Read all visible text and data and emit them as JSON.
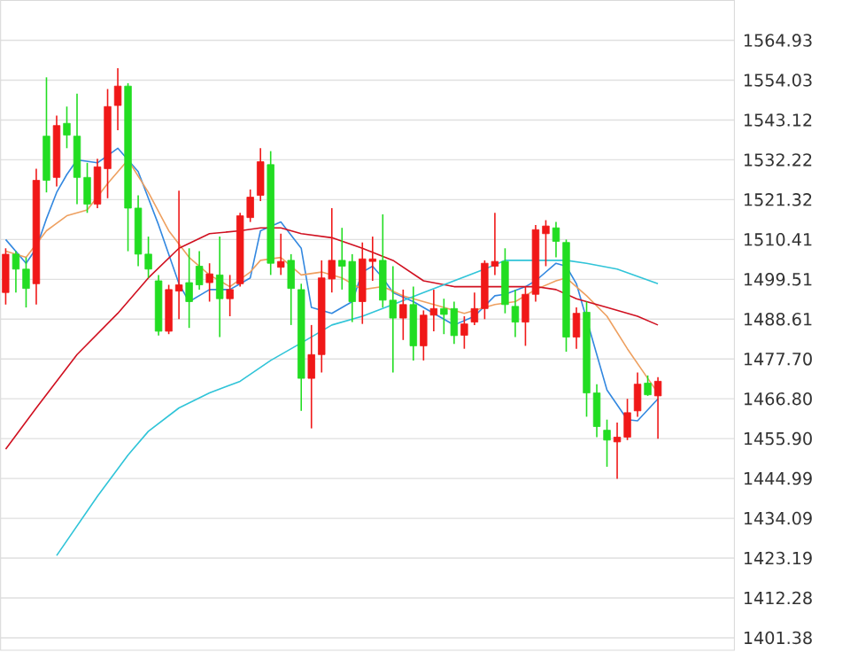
{
  "chart_data": {
    "type": "candlestick",
    "categories": [
      null,
      null,
      null,
      null,
      null,
      null,
      null,
      null,
      null,
      null,
      null,
      null,
      null,
      null,
      null,
      null,
      null,
      null,
      null,
      null,
      null,
      null,
      null,
      null,
      null,
      null,
      null,
      null,
      null,
      null,
      null,
      null,
      null,
      null,
      null,
      null,
      null,
      null,
      null,
      null,
      null,
      null,
      null,
      null,
      null,
      null,
      null,
      null,
      null,
      null,
      null,
      null,
      null,
      null,
      null,
      null,
      null,
      null,
      null,
      null,
      null,
      null,
      null,
      null,
      null
    ],
    "ohlc": [
      [
        1495.9,
        1508.0,
        1492.6,
        1506.4
      ],
      [
        1506.4,
        1507.2,
        1495.9,
        1502.3
      ],
      [
        1502.3,
        1505.5,
        1491.8,
        1497.0
      ],
      [
        1498.3,
        1529.8,
        1492.6,
        1526.6
      ],
      [
        1538.7,
        1554.8,
        1523.3,
        1526.6
      ],
      [
        1527.4,
        1544.3,
        1524.9,
        1541.6
      ],
      [
        1542.2,
        1546.8,
        1535.4,
        1539.0
      ],
      [
        1538.7,
        1550.3,
        1520.1,
        1527.4
      ],
      [
        1527.4,
        1531.4,
        1517.7,
        1520.1
      ],
      [
        1520.1,
        1532.5,
        1519.0,
        1530.3
      ],
      [
        1529.8,
        1551.6,
        1521.7,
        1546.8
      ],
      [
        1547.1,
        1557.3,
        1540.3,
        1552.4
      ],
      [
        1552.4,
        1553.2,
        1507.2,
        1519.0
      ],
      [
        1519.0,
        1522.5,
        1503.1,
        1506.4
      ],
      [
        1506.4,
        1511.2,
        1499.9,
        1502.3
      ],
      [
        1499.1,
        1500.7,
        1484.1,
        1485.3
      ],
      [
        1485.3,
        1498.0,
        1484.5,
        1496.7
      ],
      [
        1496.3,
        1523.8,
        1488.6,
        1498.0
      ],
      [
        1498.6,
        1508.0,
        1486.2,
        1493.4
      ],
      [
        1503.1,
        1507.2,
        1496.7,
        1498.0
      ],
      [
        1498.6,
        1503.9,
        1493.4,
        1501.0
      ],
      [
        1500.7,
        1511.2,
        1483.7,
        1494.2
      ],
      [
        1494.2,
        1500.7,
        1489.4,
        1496.7
      ],
      [
        1498.3,
        1517.7,
        1497.5,
        1516.9
      ],
      [
        1516.4,
        1524.1,
        1515.2,
        1522.0
      ],
      [
        1522.5,
        1535.4,
        1520.9,
        1531.7
      ],
      [
        1530.9,
        1534.6,
        1500.7,
        1503.9
      ],
      [
        1502.8,
        1512.0,
        1500.7,
        1504.4
      ],
      [
        1504.7,
        1506.4,
        1487.0,
        1497.0
      ],
      [
        1496.7,
        1498.3,
        1463.5,
        1472.4
      ],
      [
        1472.4,
        1487.0,
        1458.7,
        1478.9
      ],
      [
        1478.9,
        1504.7,
        1474.0,
        1499.9
      ],
      [
        1499.6,
        1519.0,
        1495.9,
        1504.7
      ],
      [
        1504.7,
        1513.6,
        1496.7,
        1503.1
      ],
      [
        1504.4,
        1506.4,
        1487.8,
        1493.4
      ],
      [
        1493.4,
        1509.6,
        1487.3,
        1505.1
      ],
      [
        1504.4,
        1511.2,
        1499.1,
        1505.1
      ],
      [
        1504.7,
        1517.3,
        1491.8,
        1493.8
      ],
      [
        1493.8,
        1503.1,
        1474.0,
        1488.9
      ],
      [
        1488.9,
        1496.7,
        1482.9,
        1492.6
      ],
      [
        1492.6,
        1497.5,
        1477.3,
        1481.3
      ],
      [
        1481.3,
        1491.0,
        1477.3,
        1489.7
      ],
      [
        1489.7,
        1496.7,
        1485.3,
        1491.5
      ],
      [
        1491.5,
        1494.2,
        1484.5,
        1489.9
      ],
      [
        1491.5,
        1493.4,
        1481.8,
        1484.1
      ],
      [
        1484.2,
        1489.4,
        1480.5,
        1487.3
      ],
      [
        1487.8,
        1495.9,
        1487.0,
        1491.5
      ],
      [
        1491.5,
        1504.7,
        1488.6,
        1503.9
      ],
      [
        1503.1,
        1517.7,
        1500.7,
        1504.4
      ],
      [
        1504.4,
        1508.0,
        1490.2,
        1492.6
      ],
      [
        1492.1,
        1496.7,
        1483.7,
        1487.8
      ],
      [
        1487.8,
        1497.5,
        1481.3,
        1495.4
      ],
      [
        1495.4,
        1514.4,
        1493.4,
        1513.1
      ],
      [
        1512.0,
        1515.7,
        1503.1,
        1514.1
      ],
      [
        1513.6,
        1515.2,
        1505.5,
        1509.9
      ],
      [
        1509.6,
        1510.4,
        1479.7,
        1483.7
      ],
      [
        1483.7,
        1491.8,
        1480.5,
        1490.2
      ],
      [
        1490.5,
        1493.4,
        1461.9,
        1468.4
      ],
      [
        1468.4,
        1470.8,
        1456.3,
        1459.2
      ],
      [
        1458.2,
        1461.1,
        1448.2,
        1455.5
      ],
      [
        1455.0,
        1460.3,
        1444.9,
        1456.3
      ],
      [
        1456.3,
        1466.8,
        1455.5,
        1463.0
      ],
      [
        1463.5,
        1474.0,
        1461.9,
        1470.8
      ],
      [
        1471.1,
        1473.2,
        1467.6,
        1467.9
      ],
      [
        1467.6,
        1472.7,
        1455.9,
        1471.6
      ]
    ],
    "colors": [
      "#f01818",
      "#22dd22",
      "#22dd22",
      "#f01818",
      "#22dd22",
      "#f01818",
      "#22dd22",
      "#22dd22",
      "#22dd22",
      "#f01818",
      "#f01818",
      "#f01818",
      "#22dd22",
      "#22dd22",
      "#22dd22",
      "#22dd22",
      "#f01818",
      "#f01818",
      "#22dd22",
      "#22dd22",
      "#f01818",
      "#22dd22",
      "#f01818",
      "#f01818",
      "#f01818",
      "#f01818",
      "#22dd22",
      "#f01818",
      "#22dd22",
      "#22dd22",
      "#f01818",
      "#f01818",
      "#f01818",
      "#22dd22",
      "#22dd22",
      "#f01818",
      "#f01818",
      "#22dd22",
      "#22dd22",
      "#f01818",
      "#22dd22",
      "#f01818",
      "#f01818",
      "#22dd22",
      "#22dd22",
      "#f01818",
      "#f01818",
      "#f01818",
      "#f01818",
      "#22dd22",
      "#22dd22",
      "#f01818",
      "#f01818",
      "#f01818",
      "#22dd22",
      "#22dd22",
      "#f01818",
      "#22dd22",
      "#22dd22",
      "#22dd22",
      "#f01818",
      "#f01818",
      "#f01818",
      "#22dd22",
      "#f01818"
    ],
    "series": [
      {
        "type": "line",
        "color": "#3388e0",
        "values": [
          1510.4,
          null,
          1503.9,
          1508.0,
          1516.1,
          1523.3,
          1528.2,
          1532.2,
          null,
          1531.4,
          null,
          1535.4,
          null,
          1529.0,
          null,
          1514.4,
          null,
          1498.3,
          1493.4,
          null,
          1496.7,
          null,
          1496.7,
          null,
          1499.9,
          1512.8,
          null,
          1515.2,
          null,
          1508.0,
          1491.8,
          null,
          1490.2,
          null,
          1493.4,
          1501.5,
          1503.1,
          1499.9,
          1495.9,
          null,
          1493.4,
          null,
          1490.2,
          null,
          1487.0,
          null,
          1489.4,
          null,
          1495.0,
          1495.4,
          null,
          1497.5,
          1499.1,
          null,
          1503.9,
          1503.1,
          1498.3,
          null,
          null,
          1469.2,
          null,
          1461.1,
          1460.8,
          null,
          1466.8
        ]
      },
      {
        "type": "line",
        "color": "#eea060",
        "values": [
          1507.2,
          null,
          1505.5,
          null,
          1512.8,
          null,
          1516.9,
          null,
          1518.5,
          null,
          1525.7,
          null,
          1532.2,
          null,
          1523.3,
          null,
          1512.8,
          null,
          1505.5,
          null,
          1500.7,
          null,
          1497.5,
          null,
          1501.5,
          1504.7,
          null,
          1505.5,
          null,
          1500.7,
          null,
          1501.5,
          null,
          1499.9,
          null,
          1496.7,
          null,
          1497.5,
          null,
          1495.0,
          null,
          1493.4,
          null,
          1491.8,
          null,
          1490.2,
          null,
          1491.8,
          1492.6,
          null,
          1493.4,
          null,
          1496.7,
          null,
          1499.1,
          1499.9,
          null,
          1495.0,
          null,
          1489.4,
          null,
          1480.5,
          null,
          1472.4,
          1468.4
        ]
      },
      {
        "type": "line",
        "color": "#d01020",
        "values": [
          1453.0,
          null,
          null,
          1464.3,
          null,
          null,
          null,
          1478.9,
          null,
          null,
          null,
          1490.2,
          null,
          null,
          1499.9,
          null,
          null,
          1508.0,
          null,
          null,
          1512.0,
          null,
          null,
          1512.8,
          null,
          1513.6,
          null,
          1513.6,
          null,
          1512.0,
          null,
          null,
          1510.9,
          null,
          null,
          1508.0,
          null,
          null,
          1504.7,
          null,
          null,
          1499.1,
          null,
          null,
          1497.5,
          null,
          null,
          1497.5,
          null,
          1497.5,
          null,
          null,
          1497.5,
          null,
          1496.7,
          null,
          1494.2,
          null,
          null,
          1491.8,
          null,
          null,
          1489.4,
          null,
          1487.0
        ]
      },
      {
        "type": "line",
        "color": "#30c4d8",
        "values": [
          null,
          null,
          null,
          null,
          null,
          1423.9,
          null,
          null,
          null,
          1440.1,
          null,
          null,
          1451.4,
          null,
          1457.9,
          null,
          null,
          1464.3,
          null,
          null,
          1468.4,
          null,
          null,
          1471.6,
          null,
          null,
          1477.3,
          null,
          null,
          1482.1,
          null,
          null,
          1487.0,
          null,
          null,
          1489.4,
          null,
          null,
          1492.6,
          null,
          null,
          1495.9,
          null,
          null,
          1499.1,
          null,
          null,
          1502.3,
          null,
          1504.7,
          null,
          null,
          1504.7,
          null,
          null,
          1504.7,
          null,
          1503.9,
          null,
          null,
          1502.3,
          null,
          null,
          null,
          1498.3
        ]
      }
    ],
    "ylim": [
      1397.97,
      1575.84
    ],
    "yticks": [
      1564.93,
      1554.03,
      1543.12,
      1532.22,
      1521.32,
      1510.41,
      1499.51,
      1488.61,
      {
        "value": 1477.7,
        "label": "1477.70"
      },
      {
        "value": 1466.8,
        "label": "1466.80"
      },
      {
        "value": 1455.9,
        "label": "1455.90"
      },
      1444.99,
      1434.09,
      1423.19,
      1412.28,
      1401.38
    ],
    "grid": "y",
    "tick_labels": "y"
  }
}
